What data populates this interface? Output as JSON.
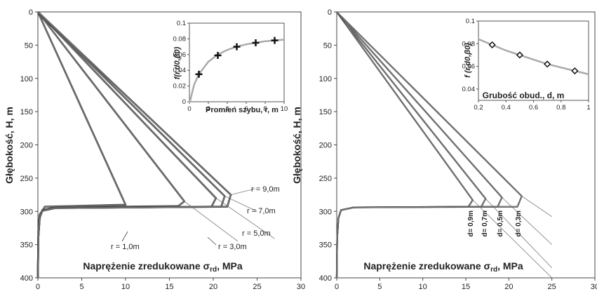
{
  "chart_data": [
    {
      "type": "line",
      "xlabel": "Naprężenie zredukowane σ",
      "xlabel_sub": "rd",
      "xlabel_unit": ", MPa",
      "ylabel": "Głębokość, H, m",
      "xlim": [
        0,
        30
      ],
      "ylim": [
        0,
        400
      ],
      "x_ticks": [
        "0",
        "5",
        "10",
        "15",
        "20",
        "25",
        "30"
      ],
      "y_ticks": [
        "0",
        "50",
        "100",
        "150",
        "200",
        "250",
        "300",
        "350",
        "400"
      ],
      "series": [
        {
          "name": "r = 1,0m",
          "points": [
            [
              0,
              0
            ],
            [
              10.0,
              290
            ],
            [
              0.8,
              293
            ],
            [
              0.2,
              305
            ],
            [
              0.05,
              330
            ],
            [
              0,
              400
            ]
          ]
        },
        {
          "name": "r = 3,0m",
          "points": [
            [
              0,
              0
            ],
            [
              16.7,
              285
            ],
            [
              16.0,
              292
            ],
            [
              2,
              294
            ],
            [
              0.5,
              298
            ],
            [
              0.2,
              310
            ],
            [
              0.05,
              340
            ],
            [
              0,
              400
            ]
          ],
          "extension": [
            [
              16.7,
              285
            ],
            [
              22.8,
              345
            ]
          ]
        },
        {
          "name": "r = 5,0m",
          "points": [
            [
              0,
              0
            ],
            [
              20.3,
              280
            ],
            [
              19.8,
              293
            ],
            [
              2,
              295
            ],
            [
              0.5,
              299
            ],
            [
              0.2,
              310
            ],
            [
              0.05,
              340
            ],
            [
              0,
              400
            ]
          ],
          "extension": [
            [
              20.3,
              280
            ],
            [
              27.0,
              341
            ]
          ]
        },
        {
          "name": "r = 7,0m",
          "points": [
            [
              0,
              0
            ],
            [
              21.3,
              277
            ],
            [
              20.9,
              293
            ],
            [
              2,
              295
            ],
            [
              0.5,
              299
            ],
            [
              0.2,
              310
            ],
            [
              0.05,
              340
            ],
            [
              0,
              400
            ]
          ],
          "extension": [
            [
              21.3,
              277
            ],
            [
              25.0,
              300
            ]
          ]
        },
        {
          "name": "r = 9,0m",
          "points": [
            [
              0,
              0
            ],
            [
              22.0,
              275
            ],
            [
              21.6,
              293
            ],
            [
              2,
              295
            ],
            [
              0.5,
              299
            ],
            [
              0.2,
              310
            ],
            [
              0.05,
              340
            ],
            [
              0,
              400
            ]
          ],
          "extension": [
            [
              22.0,
              275
            ],
            [
              24.8,
              266
            ]
          ]
        }
      ],
      "labels": [
        "r = 1,0m",
        "r = 3,0m",
        "r = 5,0m",
        "r = 7,0m",
        "r = 9,0m"
      ],
      "inset": {
        "type": "scatter",
        "xlabel": "Promień szybu, r, m",
        "ylabel": "f(r,d0,β0)",
        "xlim": [
          0,
          10
        ],
        "ylim": [
          0,
          0.1
        ],
        "x_ticks": [
          "0",
          "2",
          "4",
          "6",
          "8",
          "10"
        ],
        "y_ticks": [
          "0",
          "0.02",
          "0.04",
          "0.06",
          "0.08",
          "0.1"
        ],
        "x": [
          1,
          3,
          5,
          7,
          9
        ],
        "y": [
          0.035,
          0.059,
          0.07,
          0.075,
          0.078
        ],
        "fit_curve": [
          [
            0.05,
            0.0
          ],
          [
            0.5,
            0.022
          ],
          [
            1,
            0.035
          ],
          [
            2,
            0.051
          ],
          [
            3,
            0.06
          ],
          [
            4,
            0.066
          ],
          [
            5,
            0.07
          ],
          [
            6,
            0.073
          ],
          [
            7,
            0.075
          ],
          [
            8,
            0.077
          ],
          [
            9,
            0.078
          ],
          [
            10,
            0.079
          ]
        ]
      }
    },
    {
      "type": "line",
      "xlabel": "Naprężenie zredukowane σ",
      "xlabel_sub": "rd",
      "xlabel_unit": ", MPa",
      "ylabel": "Głębokość, H, m",
      "xlim": [
        0,
        30
      ],
      "ylim": [
        0,
        400
      ],
      "x_ticks": [
        "0",
        "5",
        "10",
        "15",
        "20",
        "25",
        "30"
      ],
      "y_ticks": [
        "0",
        "50",
        "100",
        "150",
        "200",
        "250",
        "300",
        "350",
        "400"
      ],
      "series": [
        {
          "name": "d= 0,9m",
          "points": [
            [
              0,
              0
            ],
            [
              15.8,
              283
            ],
            [
              15.3,
              293
            ],
            [
              2,
              294
            ],
            [
              0.5,
              298
            ],
            [
              0.2,
              310
            ],
            [
              0.05,
              340
            ],
            [
              0,
              400
            ]
          ],
          "extension": [
            [
              15.8,
              283
            ],
            [
              25.0,
              400
            ]
          ]
        },
        {
          "name": "d= 0,7m",
          "points": [
            [
              0,
              0
            ],
            [
              17.3,
              281
            ],
            [
              16.8,
              293
            ],
            [
              2,
              294
            ],
            [
              0.5,
              298
            ],
            [
              0.2,
              310
            ],
            [
              0.05,
              340
            ],
            [
              0,
              400
            ]
          ],
          "extension": [
            [
              17.3,
              281
            ],
            [
              25.0,
              385
            ]
          ]
        },
        {
          "name": "d= 0,5m",
          "points": [
            [
              0,
              0
            ],
            [
              19.2,
              279
            ],
            [
              18.7,
              293
            ],
            [
              2,
              294
            ],
            [
              0.5,
              298
            ],
            [
              0.2,
              310
            ],
            [
              0.05,
              340
            ],
            [
              0,
              400
            ]
          ],
          "extension": [
            [
              19.2,
              279
            ],
            [
              25.0,
              350
            ]
          ]
        },
        {
          "name": "d= 0,3m",
          "points": [
            [
              0,
              0
            ],
            [
              21.5,
              277
            ],
            [
              21.0,
              293
            ],
            [
              2,
              294
            ],
            [
              0.5,
              298
            ],
            [
              0.2,
              310
            ],
            [
              0.05,
              340
            ],
            [
              0,
              400
            ]
          ],
          "extension": [
            [
              21.5,
              277
            ],
            [
              25.0,
              308
            ]
          ]
        }
      ],
      "labels": [
        "d= 0,9m",
        "d= 0,7m",
        "d= 0,5m",
        "d= 0,3m"
      ],
      "inset": {
        "type": "scatter",
        "xlabel": "Grubość obud., d, m",
        "ylabel": "f (r,d0,β0)",
        "xlim": [
          0.2,
          1.0
        ],
        "ylim": [
          0.03,
          0.1
        ],
        "x_ticks": [
          "0.2",
          "0.4",
          "0.6",
          "0.8",
          "1"
        ],
        "y_ticks": [
          "0.04",
          "0.06",
          "0.08",
          "0.1"
        ],
        "x": [
          0.3,
          0.5,
          0.7,
          0.9
        ],
        "y": [
          0.079,
          0.07,
          0.062,
          0.056
        ],
        "fit_curve": [
          [
            0.2,
            0.084
          ],
          [
            0.3,
            0.079
          ],
          [
            0.4,
            0.074
          ],
          [
            0.5,
            0.07
          ],
          [
            0.6,
            0.066
          ],
          [
            0.7,
            0.062
          ],
          [
            0.8,
            0.059
          ],
          [
            0.9,
            0.056
          ],
          [
            1.0,
            0.053
          ]
        ]
      }
    }
  ]
}
